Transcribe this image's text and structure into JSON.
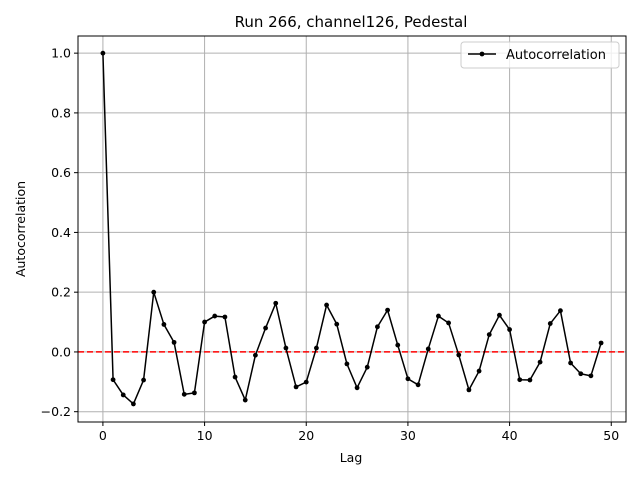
{
  "chart_data": {
    "type": "line",
    "title": "Run 266, channel126, Pedestal",
    "xlabel": "Lag",
    "ylabel": "Autocorrelation",
    "xlim": [
      -2.45,
      51.45
    ],
    "ylim": [
      -0.2345,
      1.0574
    ],
    "xticks": [
      0,
      10,
      20,
      30,
      40,
      50
    ],
    "yticks": [
      -0.2,
      0.0,
      0.2,
      0.4,
      0.6,
      0.8,
      1.0
    ],
    "xtick_labels": [
      "0",
      "10",
      "20",
      "30",
      "40",
      "50"
    ],
    "ytick_labels": [
      "−0.2",
      "0.0",
      "0.2",
      "0.4",
      "0.6",
      "0.8",
      "1.0"
    ],
    "grid": true,
    "legend": {
      "placement": "upper right",
      "entries": [
        "Autocorrelation"
      ]
    },
    "reference_line": {
      "y": 0.0,
      "color": "#ff0000",
      "style": "dashed"
    },
    "series": [
      {
        "name": "Autocorrelation",
        "color": "#000000",
        "marker": "circle",
        "x": [
          0,
          1,
          2,
          3,
          4,
          5,
          6,
          7,
          8,
          9,
          10,
          11,
          12,
          13,
          14,
          15,
          16,
          17,
          18,
          19,
          20,
          21,
          22,
          23,
          24,
          25,
          26,
          27,
          28,
          29,
          30,
          31,
          32,
          33,
          34,
          35,
          36,
          37,
          38,
          39,
          40,
          41,
          42,
          43,
          44,
          45,
          46,
          47,
          48,
          49
        ],
        "values": [
          1.0,
          -0.093,
          -0.144,
          -0.174,
          -0.094,
          0.2,
          0.092,
          0.032,
          -0.142,
          -0.137,
          0.1,
          0.12,
          0.117,
          -0.084,
          -0.161,
          -0.011,
          0.08,
          0.163,
          0.013,
          -0.117,
          -0.101,
          0.013,
          0.157,
          0.093,
          -0.04,
          -0.12,
          -0.051,
          0.084,
          0.14,
          0.023,
          -0.09,
          -0.11,
          0.01,
          0.12,
          0.097,
          -0.01,
          -0.127,
          -0.064,
          0.058,
          0.123,
          0.075,
          -0.093,
          -0.094,
          -0.034,
          0.095,
          0.138,
          -0.037,
          -0.073,
          -0.08,
          0.03
        ]
      }
    ]
  }
}
